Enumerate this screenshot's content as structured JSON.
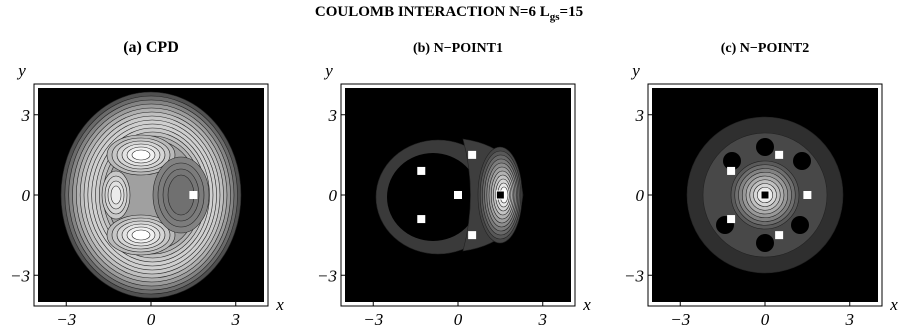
{
  "figure": {
    "title_prefix": "COULOMB INTERACTION N=6   L",
    "title_sub": "gs",
    "title_suffix": "=15"
  },
  "chart_data": [
    {
      "type": "heatmap",
      "title": "(a)  CPD",
      "xlabel": "x",
      "ylabel": "y",
      "xticks": [
        "−3",
        "0",
        "3"
      ],
      "yticks": [
        "3",
        "0",
        "−3"
      ],
      "xlim": [
        -4,
        4
      ],
      "ylim": [
        -4,
        4
      ],
      "markers": [
        {
          "x": 1.5,
          "y": 0,
          "color": "#ffffff"
        }
      ]
    },
    {
      "type": "heatmap",
      "title": "(b)  N−POINT1",
      "xlabel": "x",
      "ylabel": "y",
      "xticks": [
        "−3",
        "0",
        "3"
      ],
      "yticks": [
        "3",
        "0",
        "−3"
      ],
      "xlim": [
        -4,
        4
      ],
      "ylim": [
        -4,
        4
      ],
      "markers": [
        {
          "x": 1.5,
          "y": 0,
          "color": "#000000"
        },
        {
          "x": 0.5,
          "y": 1.5,
          "color": "#ffffff"
        },
        {
          "x": -1.3,
          "y": 0.9,
          "color": "#ffffff"
        },
        {
          "x": 0,
          "y": 0,
          "color": "#ffffff"
        },
        {
          "x": -1.3,
          "y": -0.9,
          "color": "#ffffff"
        },
        {
          "x": 0.5,
          "y": -1.5,
          "color": "#ffffff"
        }
      ]
    },
    {
      "type": "heatmap",
      "title": "(c)  N−POINT2",
      "xlabel": "x",
      "ylabel": "y",
      "xticks": [
        "−3",
        "0",
        "3"
      ],
      "yticks": [
        "3",
        "0",
        "−3"
      ],
      "xlim": [
        -4,
        4
      ],
      "ylim": [
        -4,
        4
      ],
      "markers": [
        {
          "x": 0,
          "y": 0,
          "color": "#000000"
        },
        {
          "x": 0.5,
          "y": 1.5,
          "color": "#ffffff"
        },
        {
          "x": -1.2,
          "y": 0.9,
          "color": "#ffffff"
        },
        {
          "x": 1.5,
          "y": 0,
          "color": "#ffffff"
        },
        {
          "x": -1.2,
          "y": -0.9,
          "color": "#ffffff"
        },
        {
          "x": 0.5,
          "y": -1.5,
          "color": "#ffffff"
        }
      ]
    }
  ]
}
